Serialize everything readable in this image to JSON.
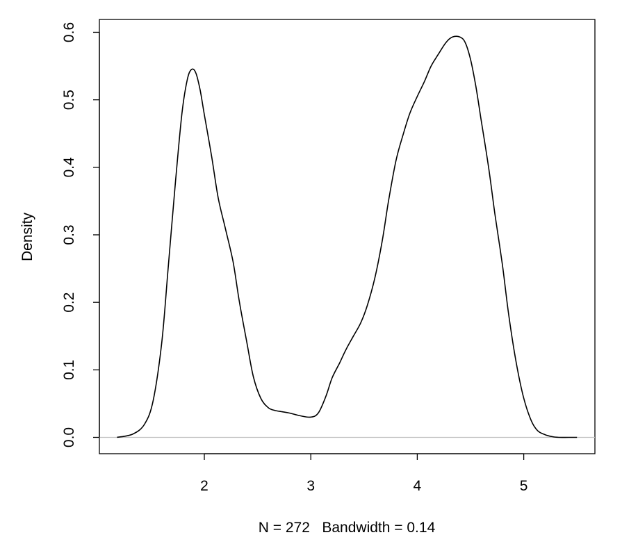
{
  "chart_data": {
    "type": "line",
    "title": "",
    "xlabel": "N = 272   Bandwidth = 0.14",
    "ylabel": "Density",
    "xlim": [
      1.18,
      5.5
    ],
    "ylim": [
      0,
      0.6
    ],
    "x_ticks": [
      "2",
      "3",
      "4",
      "5"
    ],
    "y_ticks": [
      "0.0",
      "0.1",
      "0.2",
      "0.3",
      "0.4",
      "0.5",
      "0.6"
    ],
    "baseline": 0,
    "grid": false,
    "legend": "none",
    "series": [
      {
        "x": [
          1.18,
          1.33,
          1.44,
          1.52,
          1.6,
          1.66,
          1.73,
          1.79,
          1.84,
          1.88,
          1.92,
          1.96,
          2.0,
          2.07,
          2.13,
          2.2,
          2.27,
          2.33,
          2.4,
          2.46,
          2.53,
          2.6,
          2.66,
          2.73,
          2.8,
          2.9,
          3.0,
          3.07,
          3.14,
          3.2,
          3.27,
          3.33,
          3.4,
          3.47,
          3.53,
          3.6,
          3.67,
          3.73,
          3.8,
          3.87,
          3.93,
          4.0,
          4.07,
          4.13,
          4.2,
          4.27,
          4.33,
          4.4,
          4.45,
          4.5,
          4.55,
          4.6,
          4.67,
          4.73,
          4.8,
          4.86,
          4.93,
          5.0,
          5.07,
          5.13,
          5.2,
          5.27,
          5.33,
          5.42,
          5.5
        ],
        "y": [
          0.0,
          0.005,
          0.02,
          0.055,
          0.14,
          0.25,
          0.38,
          0.48,
          0.53,
          0.545,
          0.54,
          0.515,
          0.478,
          0.415,
          0.355,
          0.308,
          0.26,
          0.2,
          0.14,
          0.09,
          0.058,
          0.044,
          0.04,
          0.038,
          0.036,
          0.032,
          0.03,
          0.036,
          0.06,
          0.088,
          0.11,
          0.13,
          0.15,
          0.17,
          0.195,
          0.235,
          0.29,
          0.35,
          0.41,
          0.45,
          0.48,
          0.505,
          0.528,
          0.55,
          0.568,
          0.585,
          0.593,
          0.593,
          0.585,
          0.56,
          0.52,
          0.47,
          0.4,
          0.33,
          0.255,
          0.18,
          0.11,
          0.058,
          0.025,
          0.01,
          0.004,
          0.001,
          0.0,
          0.0,
          0.0
        ]
      }
    ]
  }
}
